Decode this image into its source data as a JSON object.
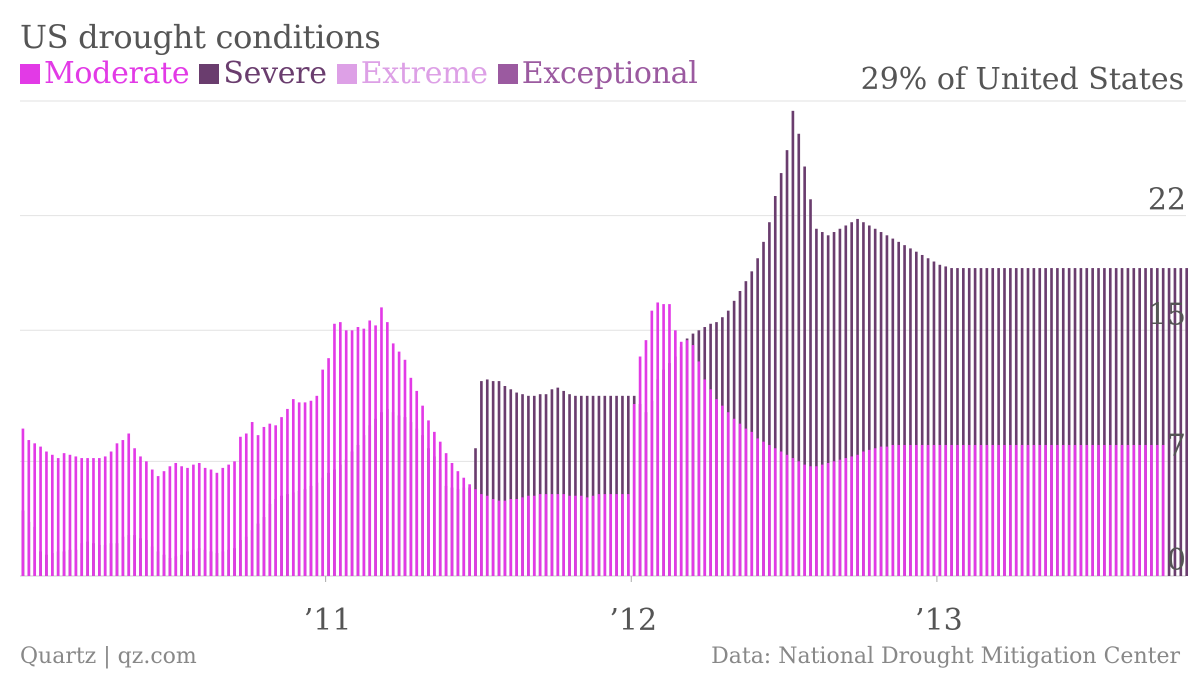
{
  "title": "US drought conditions",
  "annotation": "29% of United States",
  "credit": "Quartz | qz.com",
  "source": "Data: National Drought Mitigation Center",
  "legend": [
    {
      "label": "Moderate",
      "color": "#e23ae6"
    },
    {
      "label": "Severe",
      "color": "#6a3d6e"
    },
    {
      "label": "Extreme",
      "color": "#dda0e6"
    },
    {
      "label": "Exceptional",
      "color": "#9b5aa0"
    }
  ],
  "chart_data": {
    "type": "bar",
    "title": "US drought conditions",
    "unit": "% of United States",
    "ylim": [
      0,
      29
    ],
    "yticks": [
      0,
      7,
      15,
      22
    ],
    "y_tick_labels": [
      "0",
      "7",
      "15",
      "22"
    ],
    "x_tick_labels": [
      {
        "label": "’11",
        "week_index": 52
      },
      {
        "label": "’12",
        "week_index": 104
      },
      {
        "label": "’13",
        "week_index": 156
      }
    ],
    "grid": true,
    "legend_position": "top-left",
    "week_count": 196,
    "series": [
      {
        "name": "Moderate",
        "color": "#e23ae6",
        "values": [
          9.0,
          8.3,
          8.1,
          7.9,
          7.6,
          7.4,
          7.2,
          7.5,
          7.4,
          7.3,
          7.2,
          7.2,
          7.2,
          7.2,
          7.3,
          7.6,
          8.1,
          8.3,
          8.7,
          7.8,
          7.3,
          7.0,
          6.5,
          6.1,
          6.4,
          6.7,
          6.9,
          6.7,
          6.6,
          6.8,
          6.9,
          6.6,
          6.5,
          6.3,
          6.6,
          6.8,
          7.0,
          8.5,
          8.7,
          9.4,
          8.6,
          9.1,
          9.3,
          9.2,
          9.7,
          10.2,
          10.8,
          10.6,
          10.6,
          10.7,
          11.0,
          12.6,
          13.3,
          15.4,
          15.5,
          15.0,
          15.0,
          15.2,
          15.1,
          15.6,
          15.3,
          16.4,
          15.5,
          14.2,
          13.7,
          13.2,
          12.1,
          11.3,
          10.4,
          9.5,
          8.8,
          8.2,
          7.5,
          6.9,
          6.4,
          6.0,
          5.6,
          5.3,
          5.0,
          4.9,
          4.7,
          4.6,
          4.6,
          4.7,
          4.7,
          4.8,
          4.9,
          4.9,
          5.0,
          5.0,
          5.0,
          5.0,
          5.0,
          4.9,
          4.9,
          4.9,
          4.8,
          4.9,
          5.0,
          5.0,
          5.0,
          5.0,
          5.0,
          5.0,
          10.5,
          13.4,
          14.4,
          16.2,
          16.7,
          16.6,
          16.6,
          15.0,
          14.3,
          14.4,
          14.1,
          13.1,
          12.0,
          11.4,
          10.8,
          10.4,
          10.0,
          9.6,
          9.3,
          9.0,
          8.8,
          8.4,
          8.2,
          8.0,
          7.8,
          7.6,
          7.4,
          7.2,
          7.0,
          6.8,
          6.7,
          6.7,
          6.8,
          6.9,
          7.0,
          7.1,
          7.2,
          7.3,
          7.4,
          7.6,
          7.7,
          7.8,
          7.9,
          7.9,
          8.0,
          8.0,
          8.0,
          8.0,
          8.0,
          8.0,
          8.0,
          8.0,
          8.0,
          8.0,
          8.0,
          8.0,
          8.0,
          8.0,
          8.0,
          8.0,
          8.0,
          8.0,
          8.0,
          8.0,
          8.0,
          8.0,
          8.0,
          8.0,
          8.0,
          8.0,
          8.0,
          8.0,
          8.0,
          8.0,
          8.0,
          8.0,
          8.0,
          8.0,
          8.0,
          8.0,
          8.0,
          8.0,
          8.0,
          8.0,
          8.0,
          8.0,
          8.0,
          8.0,
          8.0,
          8.0,
          8.0
        ]
      },
      {
        "name": "Severe",
        "color": "#6a3d6e",
        "values": [
          4.0,
          3.3,
          3.0,
          1.5,
          1.3,
          1.4,
          1.5,
          1.5,
          1.6,
          1.6,
          2.0,
          2.1,
          2.0,
          1.9,
          1.9,
          2.0,
          2.0,
          2.4,
          2.5,
          2.5,
          2.3,
          2.2,
          1.8,
          1.5,
          1.3,
          1.1,
          1.2,
          1.3,
          1.5,
          1.6,
          1.7,
          1.6,
          1.5,
          1.4,
          1.5,
          1.6,
          1.7,
          2.2,
          2.4,
          2.8,
          3.2,
          3.6,
          4.4,
          4.7,
          4.9,
          5.0,
          5.1,
          5.2,
          5.3,
          5.5,
          5.7,
          6.0,
          6.3,
          6.5,
          6.8,
          7.1,
          7.6,
          8.0,
          8.6,
          9.2,
          9.6,
          10.0,
          10.2,
          10.0,
          9.8,
          9.7,
          9.4,
          9.0,
          8.6,
          7.8,
          7.3,
          6.5,
          5.5,
          5.4,
          5.3,
          5.4,
          5.4,
          7.8,
          11.9,
          12.0,
          11.9,
          11.9,
          11.6,
          11.4,
          11.2,
          11.1,
          11.0,
          11.0,
          11.1,
          11.1,
          11.4,
          11.5,
          11.3,
          11.1,
          11.0,
          11.0,
          11.0,
          11.0,
          11.0,
          11.0,
          11.0,
          11.0,
          11.0,
          11.0,
          11.0,
          10.5,
          10.0,
          10.7,
          12.0,
          12.6,
          13.0,
          13.4,
          14.0,
          14.5,
          14.8,
          15.0,
          15.2,
          15.4,
          15.5,
          15.8,
          16.2,
          16.8,
          17.4,
          18.0,
          18.6,
          19.4,
          20.4,
          21.6,
          23.2,
          24.6,
          26.0,
          28.4,
          27.0,
          25.0,
          23.0,
          21.2,
          21.0,
          20.8,
          21.0,
          21.2,
          21.4,
          21.6,
          21.8,
          21.6,
          21.4,
          21.2,
          21.0,
          20.8,
          20.6,
          20.4,
          20.2,
          20.0,
          19.8,
          19.6,
          19.4,
          19.2,
          19.0,
          18.9,
          18.8,
          18.8,
          18.8,
          18.8,
          18.8,
          18.8,
          18.8,
          18.8,
          18.8,
          18.8,
          18.8,
          18.8,
          18.8,
          18.8,
          18.8,
          18.8,
          18.8,
          18.8,
          18.8,
          18.8,
          18.8,
          18.8,
          18.8,
          18.8,
          18.8,
          18.8,
          18.8,
          18.8,
          18.8,
          18.8,
          18.8,
          18.8,
          18.8,
          18.8,
          18.8,
          18.8,
          18.8,
          18.8,
          18.8,
          18.8,
          18.8
        ]
      },
      {
        "name": "Extreme",
        "color": "#dda0e6",
        "values": [
          0,
          0,
          0,
          0,
          0,
          0,
          0,
          0,
          0,
          0,
          0,
          0,
          0,
          0,
          0,
          0,
          0,
          0,
          0,
          0,
          0,
          0,
          0,
          0,
          0,
          0,
          0,
          0,
          0,
          0,
          0,
          0,
          0,
          0,
          0,
          0,
          0,
          0,
          0,
          0,
          0,
          0,
          0,
          0,
          0,
          0,
          0,
          0,
          0,
          0,
          0,
          0,
          0,
          0,
          0,
          0,
          0,
          0,
          0,
          0,
          0,
          0,
          0,
          0,
          0,
          0,
          0,
          0,
          0,
          0,
          0,
          0,
          0,
          0,
          0,
          0,
          0,
          0,
          0,
          0,
          0,
          0,
          0,
          0,
          0,
          0,
          0,
          0,
          0,
          0,
          0,
          0,
          0,
          0,
          0,
          0,
          0,
          0,
          0,
          0,
          0,
          0,
          0,
          0,
          0,
          0,
          0,
          0,
          0,
          0,
          0,
          0,
          0,
          0,
          0,
          0,
          0,
          0,
          0,
          0,
          0,
          0,
          0,
          0,
          0,
          0,
          0,
          0,
          0,
          0,
          0,
          0,
          0,
          0,
          0,
          0,
          0,
          0,
          0,
          0,
          0,
          0,
          0,
          0,
          0,
          0,
          0,
          0,
          0,
          0,
          0,
          0,
          0,
          0,
          0,
          0,
          0,
          0,
          0,
          0,
          0,
          0,
          0,
          0,
          0,
          0,
          0,
          0,
          0,
          0,
          0,
          0,
          0,
          0,
          0,
          0,
          0,
          0,
          0,
          0,
          0,
          0,
          0,
          0,
          0,
          0,
          0,
          0,
          0,
          0,
          0,
          0,
          0,
          0,
          0,
          0
        ]
      },
      {
        "name": "Exceptional",
        "color": "#9b5aa0",
        "values": [
          0,
          0,
          0,
          0,
          0,
          0,
          0,
          0,
          0,
          0,
          0,
          0,
          0,
          0,
          0,
          0,
          0,
          0,
          0,
          0,
          0,
          0,
          0,
          0,
          0,
          0,
          0,
          0,
          0,
          0,
          0,
          0,
          0,
          0,
          0,
          0,
          0,
          0,
          0,
          0,
          0,
          0,
          0,
          0,
          0,
          0,
          0,
          0,
          0,
          0,
          0,
          0,
          0,
          0,
          0,
          0,
          0,
          0,
          0,
          0,
          0,
          0,
          0,
          0,
          0,
          0,
          0,
          0,
          0,
          0,
          0,
          0,
          0,
          0,
          0,
          0,
          0,
          0,
          0,
          0,
          0,
          0,
          0,
          0,
          0,
          0,
          0,
          0,
          0,
          0,
          0,
          0,
          0,
          0,
          0,
          0,
          0,
          0,
          0,
          0,
          0,
          0,
          0,
          0,
          0,
          0,
          0,
          0,
          0,
          0,
          0,
          0,
          0,
          0,
          0,
          0,
          0,
          0,
          0,
          0,
          0,
          0,
          0,
          0,
          0,
          0,
          0,
          0,
          0,
          0,
          0,
          0,
          0,
          0,
          0,
          0,
          0,
          0,
          0,
          0,
          0,
          0,
          0,
          0,
          0,
          0,
          0,
          0,
          0,
          0,
          0,
          0,
          0,
          0,
          0,
          0,
          0,
          0,
          0,
          0,
          0,
          0,
          0,
          0,
          0,
          0,
          0,
          0,
          0,
          0,
          0,
          0,
          0,
          0,
          0,
          0,
          0,
          0,
          0,
          0,
          0,
          0,
          0,
          0,
          0,
          0,
          0,
          0,
          0,
          0,
          0,
          0,
          0,
          0,
          0,
          0
        ]
      }
    ]
  }
}
